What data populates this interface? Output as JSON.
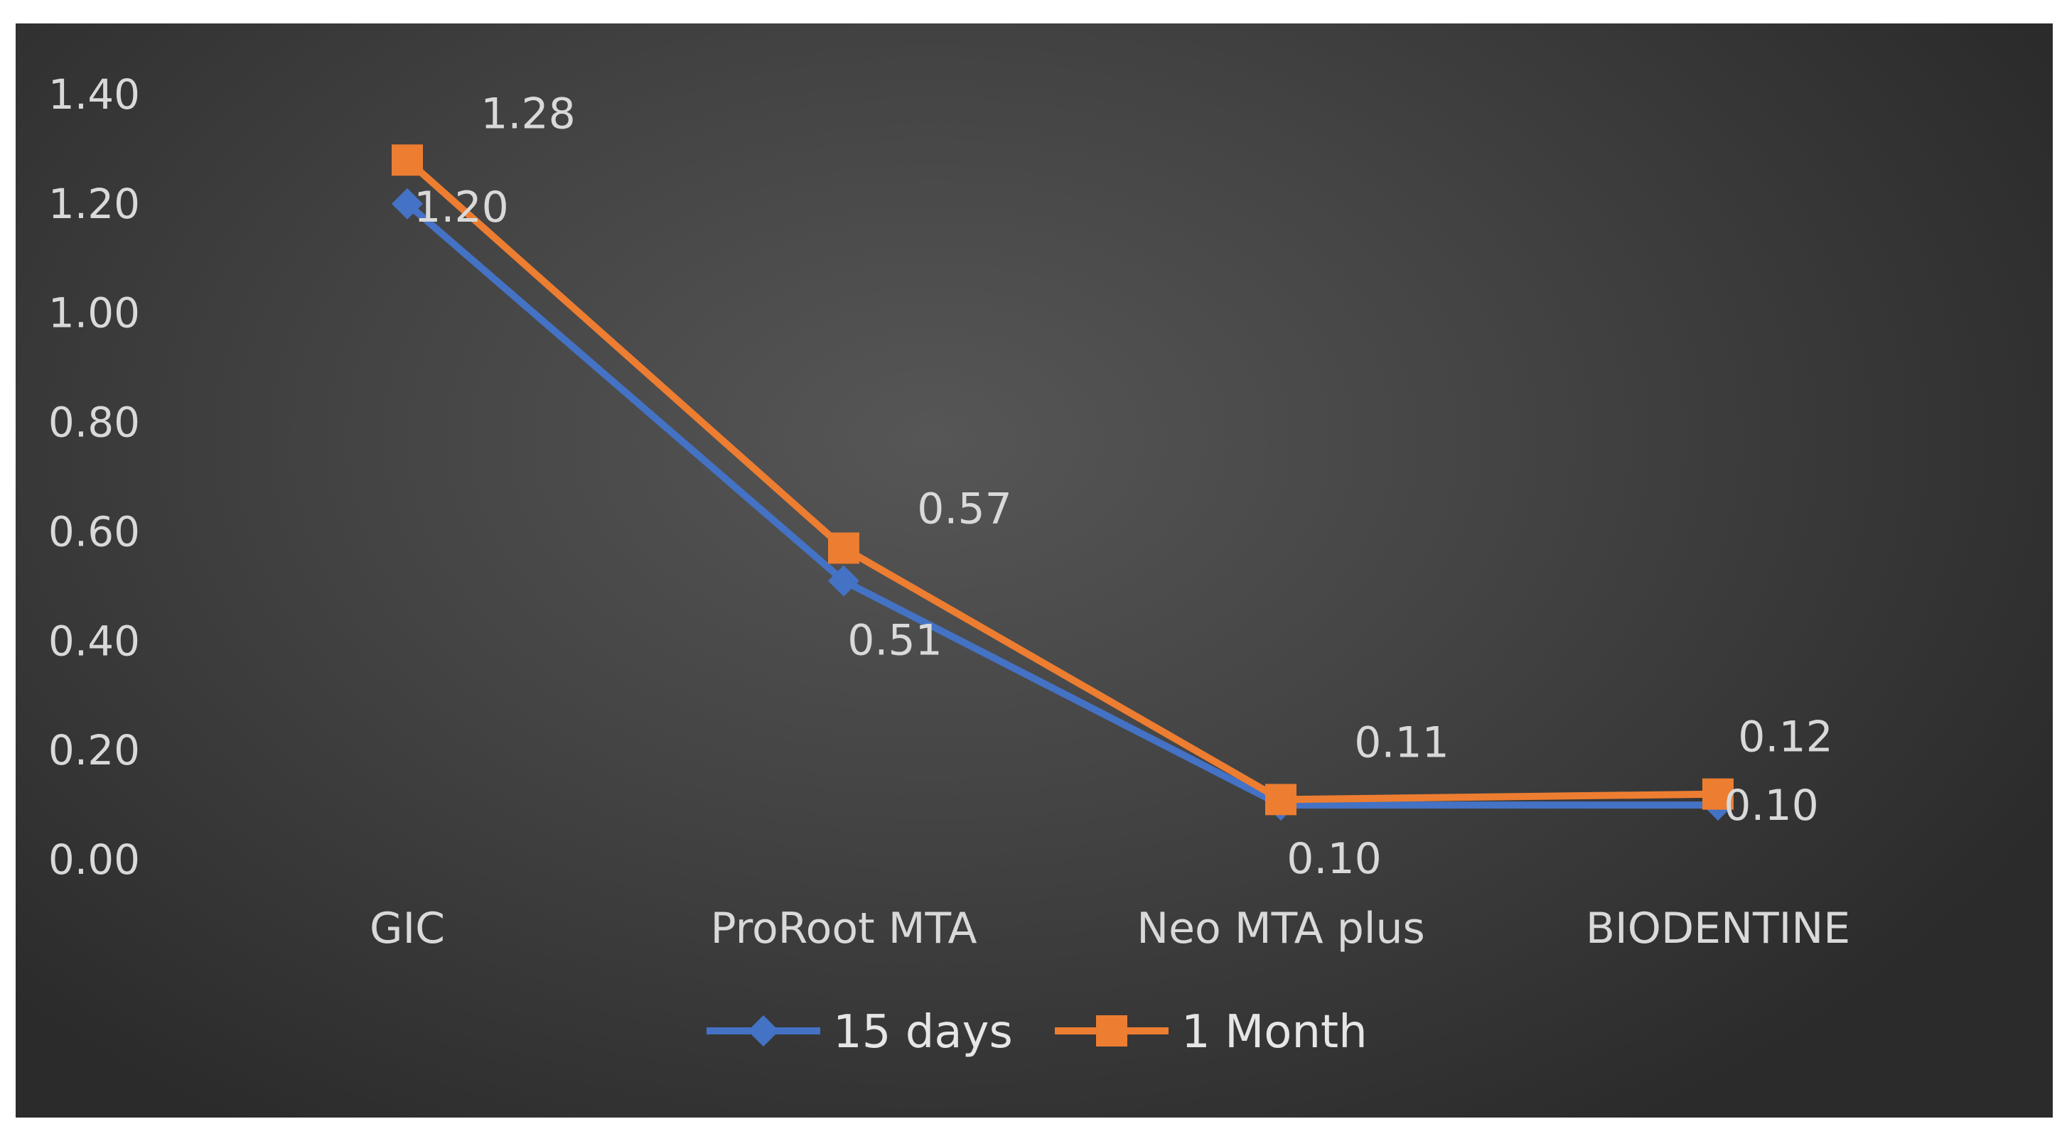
{
  "chart_data": {
    "type": "line",
    "categories": [
      "GIC",
      "ProRoot MTA",
      "Neo MTA plus",
      "BIODENTINE"
    ],
    "series": [
      {
        "name": "15 days",
        "values": [
          1.2,
          0.51,
          0.1,
          0.1
        ],
        "labels": [
          "1.20",
          "0.51",
          "0.10",
          "0.10"
        ],
        "color": "#4472c4",
        "marker": "diamond"
      },
      {
        "name": "1 Month",
        "values": [
          1.28,
          0.57,
          0.11,
          0.12
        ],
        "labels": [
          "1.28",
          "0.57",
          "0.11",
          "0.12"
        ],
        "color": "#ed7d31",
        "marker": "square"
      }
    ],
    "yticks": [
      "0.00",
      "0.20",
      "0.40",
      "0.60",
      "0.80",
      "1.00",
      "1.20",
      "1.40"
    ],
    "ylim": [
      0,
      1.4
    ],
    "grid": false,
    "legend_position": "bottom",
    "title": "",
    "xlabel": "",
    "ylabel": "",
    "background": "#444444",
    "text_color": "#d9d9d9"
  }
}
